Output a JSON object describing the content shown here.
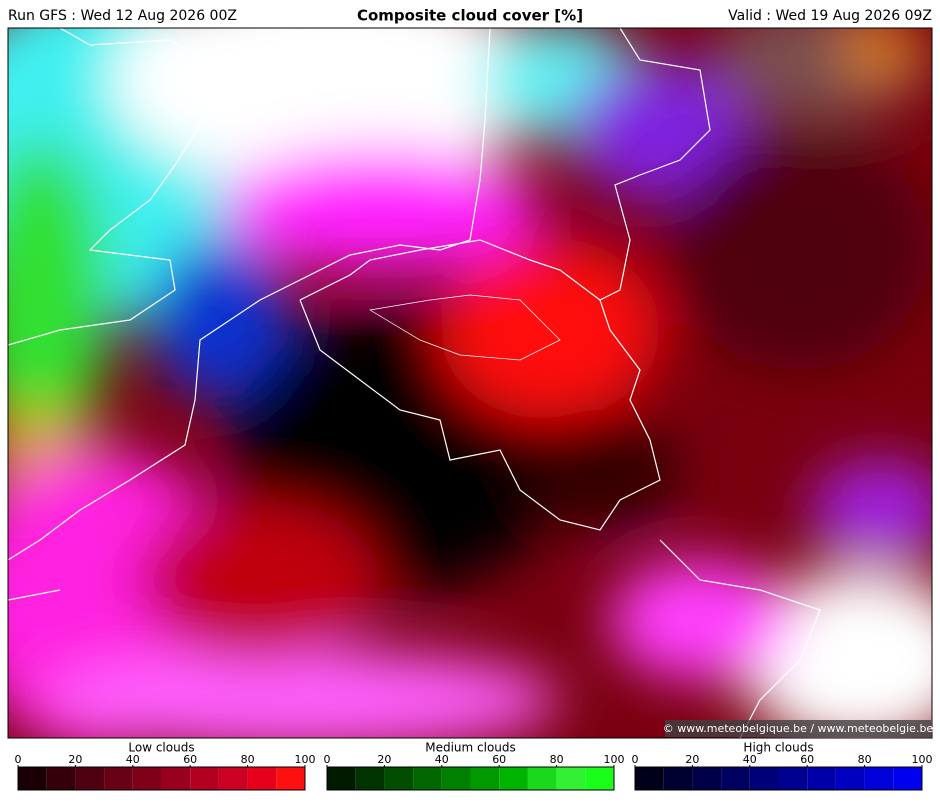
{
  "header": {
    "run": "Run GFS : Wed 12 Aug 2026 00Z",
    "title": "Composite cloud cover [%]",
    "valid": "Valid : Wed 19 Aug 2026 09Z"
  },
  "credit": "© www.meteobelgique.be / www.meteobelgie.be",
  "legends": [
    {
      "name": "Low clouds",
      "ticks": [
        0,
        20,
        40,
        60,
        80,
        100
      ],
      "colors": [
        "#1a0004",
        "#35000a",
        "#4f0010",
        "#680016",
        "#80001a",
        "#99001e",
        "#b30020",
        "#cc0022",
        "#e6001c",
        "#ff1010"
      ]
    },
    {
      "name": "Medium clouds",
      "ticks": [
        0,
        20,
        40,
        60,
        80,
        100
      ],
      "colors": [
        "#001a00",
        "#003300",
        "#004d00",
        "#006600",
        "#008000",
        "#009900",
        "#00b300",
        "#1ad91a",
        "#33f033",
        "#1aff1a"
      ]
    },
    {
      "name": "High clouds",
      "ticks": [
        0,
        20,
        40,
        60,
        80,
        100
      ],
      "colors": [
        "#000018",
        "#000030",
        "#000048",
        "#000060",
        "#000078",
        "#000090",
        "#0000a8",
        "#0000c0",
        "#0000d8",
        "#0000f0"
      ]
    }
  ]
}
